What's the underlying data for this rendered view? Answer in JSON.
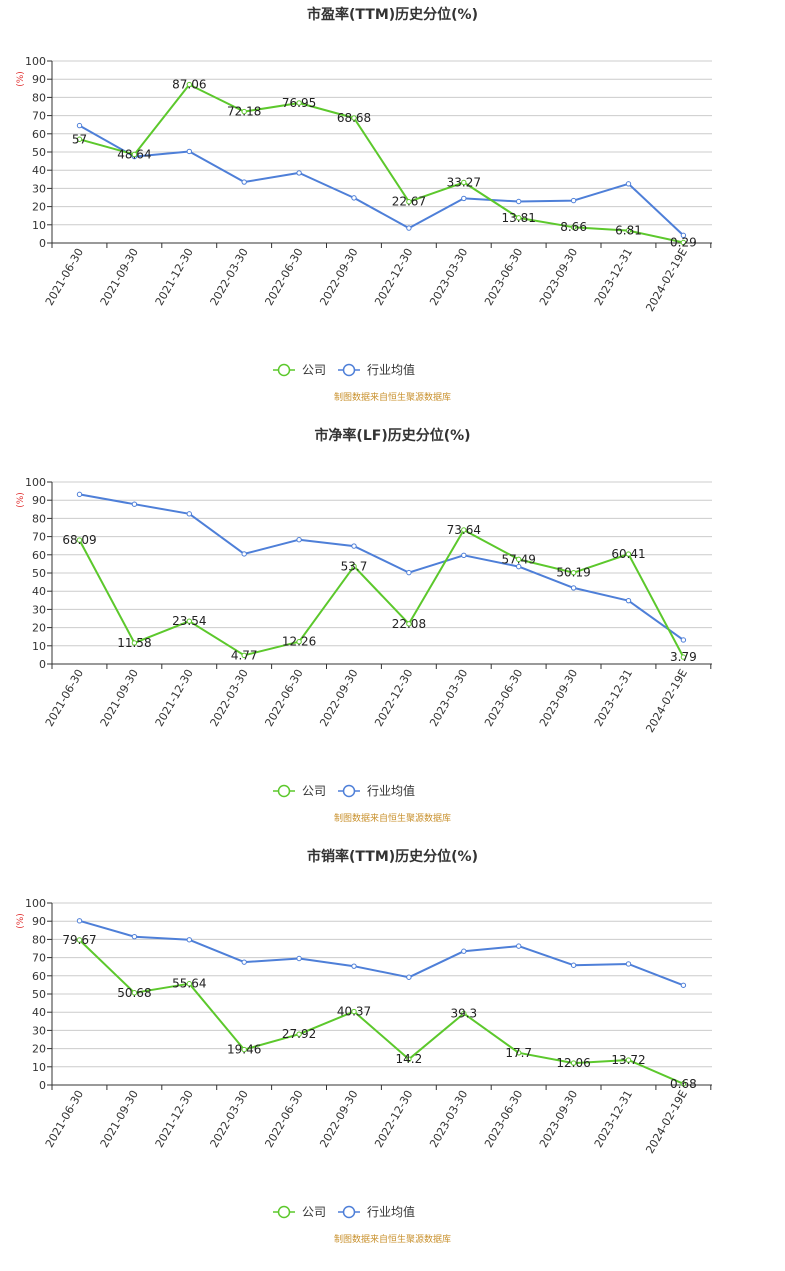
{
  "x_categories": [
    "2021-06-30",
    "2021-09-30",
    "2021-12-30",
    "2022-03-30",
    "2022-06-30",
    "2022-09-30",
    "2022-12-30",
    "2023-03-30",
    "2023-06-30",
    "2023-09-30",
    "2023-12-31",
    "2024-02-19E"
  ],
  "colors": {
    "company": "#5cc82c",
    "industry": "#4e7fd8"
  },
  "chart_data": [
    {
      "type": "line",
      "title": "市盈率(TTM)历史分位(%)",
      "unit_label": "(%)",
      "yticks": [
        "0",
        "10",
        "20",
        "30",
        "40",
        "50",
        "60",
        "70",
        "80",
        "90",
        "100"
      ],
      "ylim": [
        0,
        100
      ],
      "grid": true,
      "legend_position": "bottom-center",
      "legend": [
        "公司",
        "行业均值"
      ],
      "source": "制图数据来自恒生聚源数据库",
      "series": [
        {
          "name": "公司",
          "values": [
            57,
            48.64,
            87.06,
            72.18,
            76.95,
            68.68,
            22.67,
            33.27,
            13.81,
            8.66,
            6.81,
            0.29
          ],
          "labels": [
            "57",
            "48.64",
            "87.06",
            "72.18",
            "76.95",
            "68.68",
            "22.67",
            "33.27",
            "13.81",
            "8.66",
            "6.81",
            "0.29"
          ]
        },
        {
          "name": "行业均值",
          "values": [
            64.5,
            47.5,
            50.3,
            33.5,
            38.5,
            24.8,
            8.2,
            24.5,
            22.8,
            23.3,
            32.5,
            4.2
          ]
        }
      ]
    },
    {
      "type": "line",
      "title": "市净率(LF)历史分位(%)",
      "unit_label": "(%)",
      "yticks": [
        "0",
        "10",
        "20",
        "30",
        "40",
        "50",
        "60",
        "70",
        "80",
        "90",
        "100"
      ],
      "ylim": [
        0,
        100
      ],
      "grid": true,
      "legend_position": "bottom-center",
      "legend": [
        "公司",
        "行业均值"
      ],
      "source": "制图数据来自恒生聚源数据库",
      "series": [
        {
          "name": "公司",
          "values": [
            68.09,
            11.58,
            23.54,
            4.77,
            12.26,
            53.7,
            22.08,
            73.64,
            57.49,
            50.19,
            60.41,
            3.79
          ],
          "labels": [
            "68.09",
            "11.58",
            "23.54",
            "4.77",
            "12.26",
            "53.7",
            "22.08",
            "73.64",
            "57.49",
            "50.19",
            "60.41",
            "3.79"
          ]
        },
        {
          "name": "行业均值",
          "values": [
            93.2,
            87.8,
            82.5,
            60.5,
            68.3,
            64.8,
            50.2,
            59.7,
            53.5,
            41.8,
            34.8,
            13.2
          ]
        }
      ]
    },
    {
      "type": "line",
      "title": "市销率(TTM)历史分位(%)",
      "unit_label": "(%)",
      "yticks": [
        "0",
        "10",
        "20",
        "30",
        "40",
        "50",
        "60",
        "70",
        "80",
        "90",
        "100"
      ],
      "ylim": [
        0,
        100
      ],
      "grid": true,
      "legend_position": "bottom-center",
      "legend": [
        "公司",
        "行业均值"
      ],
      "source": "制图数据来自恒生聚源数据库",
      "series": [
        {
          "name": "公司",
          "values": [
            79.67,
            50.68,
            55.64,
            19.46,
            27.92,
            40.37,
            14.2,
            39.3,
            17.7,
            12.06,
            13.72,
            0.68
          ],
          "labels": [
            "79.67",
            "50.68",
            "55.64",
            "19.46",
            "27.92",
            "40.37",
            "14.2",
            "39.3",
            "17.7",
            "12.06",
            "13.72",
            "0.68"
          ]
        },
        {
          "name": "行业均值",
          "values": [
            90.2,
            81.5,
            79.8,
            67.5,
            69.5,
            65.3,
            59.2,
            73.5,
            76.3,
            65.8,
            66.5,
            54.8
          ]
        }
      ]
    }
  ]
}
